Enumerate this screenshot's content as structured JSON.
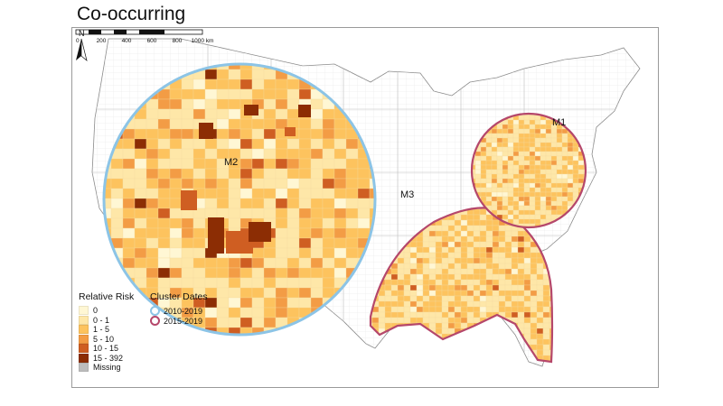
{
  "title": "Co-occurring",
  "clusters": [
    {
      "label": "M1",
      "date_group": "2015-2019"
    },
    {
      "label": "M2",
      "date_group": "2010-2019"
    },
    {
      "label": "M3",
      "date_group": "2015-2019"
    }
  ],
  "legend_risk": {
    "title": "Relative Risk",
    "items": [
      {
        "label": "0",
        "color": "#fff7d4"
      },
      {
        "label": "0 - 1",
        "color": "#fee7a8"
      },
      {
        "label": "1 - 5",
        "color": "#fdc35e"
      },
      {
        "label": "5 - 10",
        "color": "#f39c45"
      },
      {
        "label": "10 - 15",
        "color": "#cf5e22"
      },
      {
        "label": "15 - 392",
        "color": "#8c2d04"
      },
      {
        "label": "Missing",
        "color": "#bdbdbd"
      }
    ]
  },
  "legend_dates": {
    "title": "Cluster Dates",
    "items": [
      {
        "label": "2010-2019",
        "color": "#8cc4e6"
      },
      {
        "label": "2015-2019",
        "color": "#b5476b"
      }
    ]
  },
  "scale": {
    "ticks": [
      "0",
      "200",
      "400",
      "600",
      "800",
      "1000 km"
    ]
  },
  "north_label": "N"
}
